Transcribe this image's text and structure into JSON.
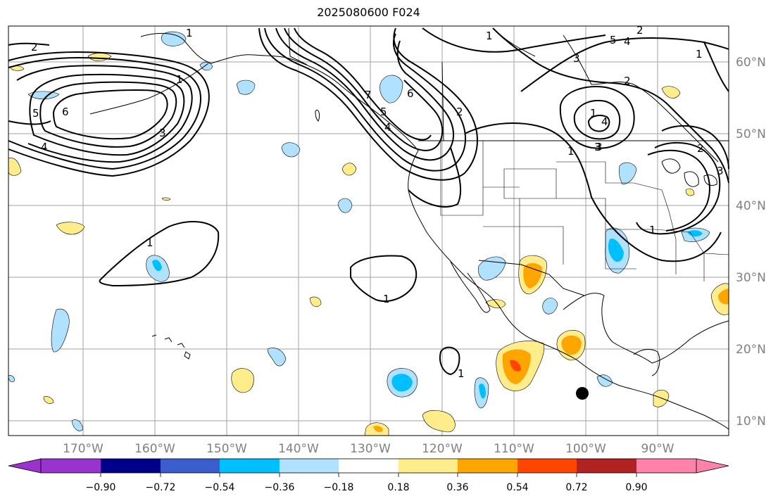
{
  "title": "2025080600 F024",
  "lon_ticks": [
    "170°W",
    "160°W",
    "150°W",
    "140°W",
    "130°W",
    "120°W",
    "110°W",
    "100°W",
    "90°W"
  ],
  "lat_ticks": [
    "60°N",
    "50°N",
    "40°N",
    "30°N",
    "20°N",
    "10°N"
  ],
  "colorbar": {
    "tick_labels": [
      "−0.90",
      "−0.72",
      "−0.54",
      "−0.36",
      "−0.18",
      "0.18",
      "0.36",
      "0.54",
      "0.72",
      "0.90"
    ],
    "colors": [
      "#9a32cd",
      "#00008b",
      "#3a5fcd",
      "#00bfff",
      "#b0e2ff",
      "#ffffff",
      "#ffec8b",
      "#ffa500",
      "#ff4500",
      "#b22222",
      "#ff82ab"
    ]
  },
  "contour_labels": [
    "2",
    "1",
    "5",
    "6",
    "4",
    "3",
    "5",
    "4",
    "3",
    "1",
    "2",
    "1",
    "6",
    "2",
    "1",
    "7",
    "5",
    "4",
    "3",
    "1",
    "3",
    "2",
    "1",
    "2",
    "4",
    "3",
    "1",
    "1",
    "1",
    "1"
  ],
  "marker": "storm-center-marker"
}
